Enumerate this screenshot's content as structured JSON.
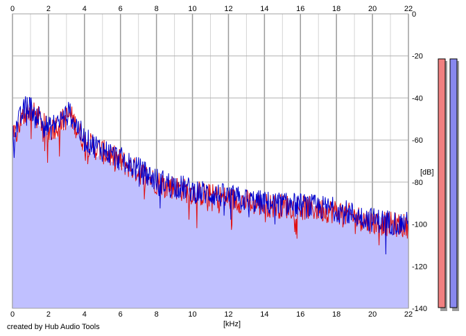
{
  "credit": "created by Hub Audio Tools",
  "chart_data": {
    "type": "area",
    "xlabel": "[kHz]",
    "ylabel": "[dB]",
    "xlim": [
      0,
      22
    ],
    "ylim": [
      -140,
      0
    ],
    "xticks": [
      0,
      2,
      4,
      6,
      8,
      10,
      12,
      14,
      16,
      18,
      20,
      22
    ],
    "yticks": [
      0,
      -20,
      -40,
      -60,
      -80,
      -100,
      -120,
      -140
    ],
    "grid": true,
    "colors": {
      "left": "#e01010",
      "right": "#0000cc",
      "fill": "#c0c0ff",
      "meter_left": "#f08080",
      "meter_right": "#8888ee"
    },
    "envelope": {
      "x": [
        0,
        0.3,
        0.8,
        1.2,
        1.6,
        2.0,
        2.5,
        3.0,
        3.3,
        3.6,
        3.9,
        4.2,
        5,
        6,
        7,
        8,
        9,
        10,
        11,
        12,
        13,
        14,
        15,
        16,
        17,
        18,
        19,
        20,
        21,
        22
      ],
      "y": [
        -62,
        -55,
        -49,
        -51,
        -53,
        -60,
        -58,
        -53,
        -51,
        -56,
        -64,
        -66,
        -68,
        -72,
        -75,
        -80,
        -81,
        -84,
        -85,
        -86,
        -87,
        -88,
        -89,
        -90,
        -91,
        -92,
        -94,
        -96,
        -97,
        -98
      ]
    },
    "series": [
      {
        "channel": "left",
        "x": [
          0,
          0.8,
          1.5,
          2.0,
          3.2,
          4.0,
          6.0,
          8.0,
          10.0,
          12.0,
          14.0,
          16.0,
          18.0,
          20.0,
          22.0
        ],
        "values": [
          -57,
          -42,
          -47,
          -53,
          -45,
          -58,
          -67,
          -77,
          -82,
          -85,
          -88,
          -89,
          -91,
          -96,
          -98
        ]
      },
      {
        "channel": "right",
        "x": [
          0,
          0.8,
          1.5,
          2.0,
          3.2,
          4.0,
          6.0,
          8.0,
          10.0,
          12.0,
          14.0,
          16.0,
          18.0,
          20.0,
          22.0
        ],
        "values": [
          -55,
          -40,
          -46,
          -52,
          -44,
          -57,
          -66,
          -76,
          -81,
          -84,
          -87,
          -88,
          -90,
          -95,
          -97
        ]
      }
    ],
    "meters": [
      {
        "channel": "left",
        "value": -140
      },
      {
        "channel": "right",
        "value": -140
      }
    ]
  }
}
